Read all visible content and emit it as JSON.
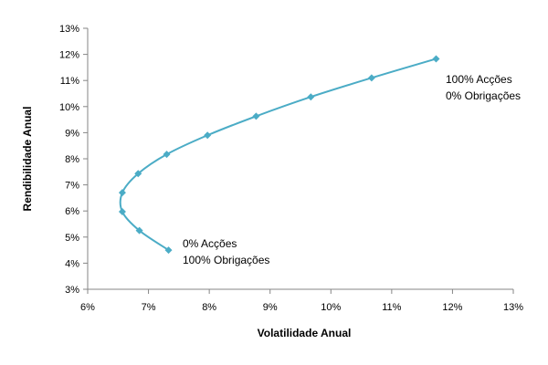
{
  "chart_data": {
    "type": "line",
    "xlabel": "Volatilidade Anual",
    "ylabel": "Rendibilidade Anual",
    "xlim": [
      6,
      13
    ],
    "ylim": [
      3,
      13
    ],
    "x_ticks": [
      "6%",
      "7%",
      "8%",
      "9%",
      "10%",
      "11%",
      "12%",
      "13%"
    ],
    "y_ticks": [
      "3%",
      "4%",
      "5%",
      "6%",
      "7%",
      "8%",
      "9%",
      "10%",
      "11%",
      "12%",
      "13%"
    ],
    "grid": false,
    "legend": "none",
    "color": "#4bacc6",
    "series": [
      {
        "x": [
          7.33,
          6.85,
          6.57,
          6.57,
          6.83,
          7.3,
          7.97,
          8.77,
          9.67,
          10.67,
          11.73
        ],
        "y": [
          4.5,
          5.25,
          5.97,
          6.7,
          7.43,
          8.17,
          8.9,
          9.63,
          10.37,
          11.1,
          11.83
        ]
      }
    ],
    "annotations": [
      {
        "lines": [
          "0% Acções",
          "100% Obrigações"
        ]
      },
      {
        "lines": [
          "100% Acções",
          "0% Obrigações"
        ]
      }
    ]
  }
}
